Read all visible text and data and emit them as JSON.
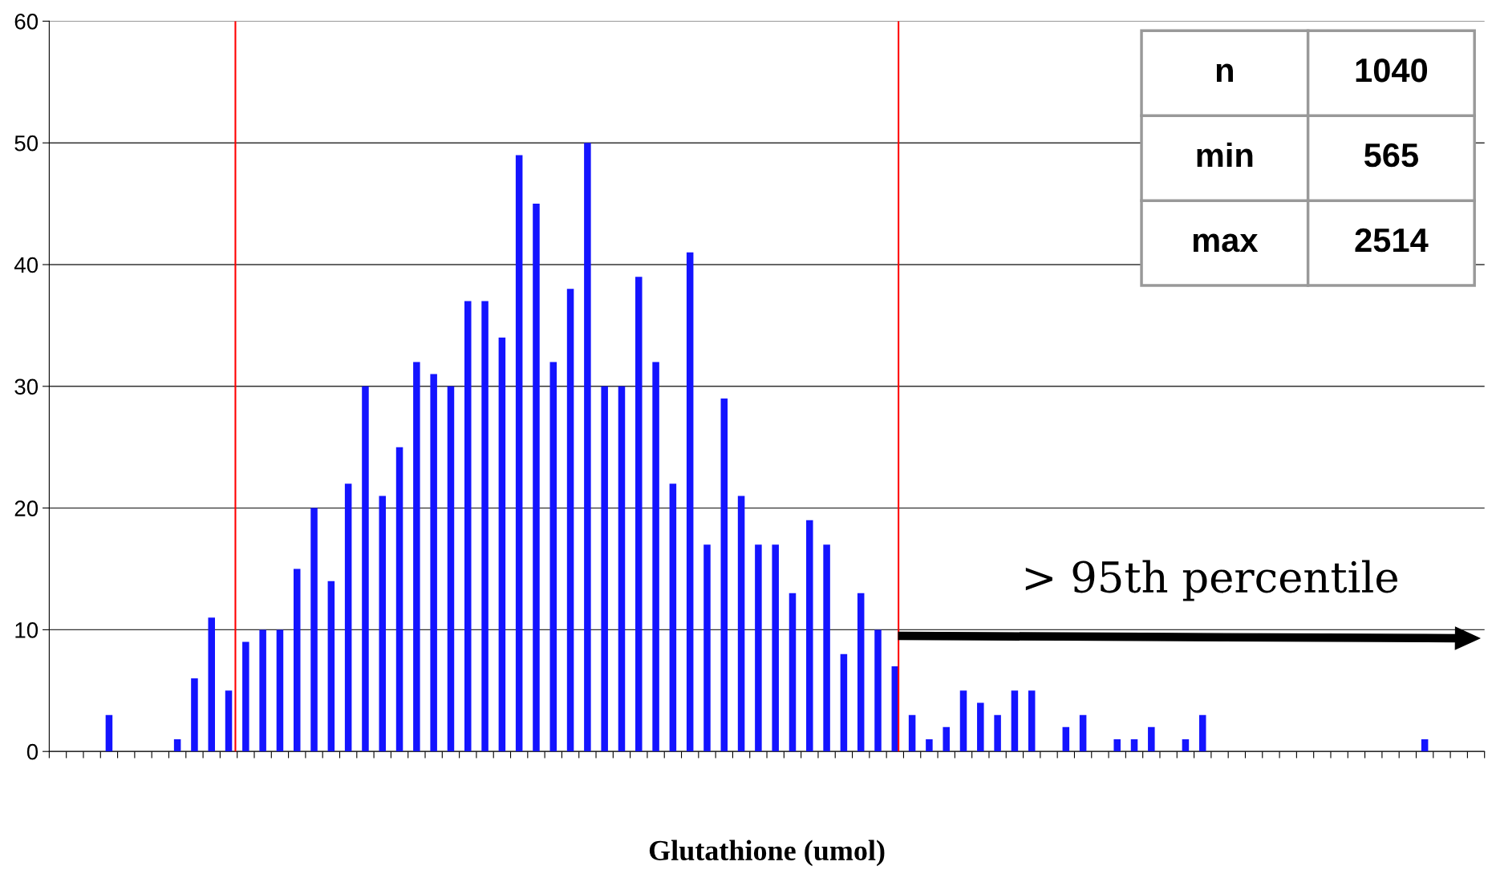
{
  "chart_data": {
    "type": "bar",
    "xlabel": "Glutathione (umol)",
    "categories": [
      null,
      null,
      null,
      null,
      null,
      null,
      null,
      null,
      null,
      null,
      null,
      null,
      null,
      null,
      null,
      null,
      null,
      null,
      null,
      null,
      null,
      null,
      null,
      null,
      null,
      null,
      null,
      null,
      null,
      null,
      null,
      null,
      null,
      null,
      null,
      null,
      null,
      null,
      null,
      null,
      null,
      null,
      null,
      null,
      null,
      null,
      null,
      null,
      null,
      null,
      null,
      null,
      null,
      null,
      null,
      null,
      null,
      null,
      null,
      null,
      null,
      null,
      null,
      null,
      null,
      null,
      null,
      null,
      null,
      null,
      null,
      null,
      null,
      null,
      null,
      null,
      null,
      null,
      null,
      null,
      null,
      null,
      null,
      null
    ],
    "values": [
      0,
      0,
      0,
      3,
      0,
      0,
      0,
      1,
      6,
      11,
      5,
      9,
      10,
      10,
      15,
      20,
      14,
      22,
      30,
      21,
      25,
      32,
      31,
      30,
      37,
      37,
      34,
      49,
      45,
      32,
      38,
      50,
      30,
      30,
      39,
      32,
      22,
      41,
      17,
      29,
      21,
      17,
      17,
      13,
      19,
      17,
      8,
      13,
      10,
      7,
      3,
      1,
      2,
      5,
      4,
      3,
      5,
      5,
      0,
      2,
      3,
      0,
      1,
      1,
      2,
      0,
      1,
      3,
      0,
      0,
      0,
      0,
      0,
      0,
      0,
      0,
      0,
      0,
      0,
      0,
      1,
      0,
      0,
      0
    ],
    "color": "#1414ff",
    "ylim": [
      0,
      60
    ],
    "yticks": [
      0,
      10,
      20,
      30,
      40,
      50,
      60
    ],
    "grid": "y",
    "tick_labels": "y",
    "annotations": [
      "n",
      "1040",
      "min",
      "565",
      "max",
      "2514",
      "> 95th percentile"
    ]
  }
}
